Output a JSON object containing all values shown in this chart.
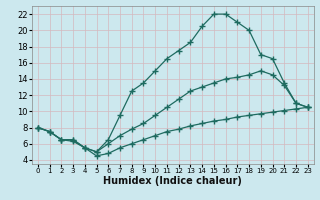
{
  "bg_color": "#cce8ee",
  "grid_color": "#b8d8e0",
  "line_color": "#1e6b60",
  "line_width": 0.9,
  "marker": "+",
  "marker_size": 4,
  "marker_edge_width": 1.0,
  "xlabel": "Humidex (Indice chaleur)",
  "xlabel_fontsize": 7,
  "xlabel_bold": true,
  "xlim": [
    -0.5,
    23.5
  ],
  "ylim": [
    3.5,
    23
  ],
  "xticks": [
    0,
    1,
    2,
    3,
    4,
    5,
    6,
    7,
    8,
    9,
    10,
    11,
    12,
    13,
    14,
    15,
    16,
    17,
    18,
    19,
    20,
    21,
    22,
    23
  ],
  "yticks": [
    4,
    6,
    8,
    10,
    12,
    14,
    16,
    18,
    20,
    22
  ],
  "curve1_x": [
    0,
    1,
    2,
    3,
    4,
    5,
    6,
    7,
    8,
    9,
    10,
    11,
    12,
    13,
    14,
    15,
    16,
    17,
    18,
    19,
    20,
    21,
    22,
    23
  ],
  "curve1_y": [
    8.0,
    7.5,
    6.5,
    6.5,
    5.5,
    5.0,
    6.5,
    9.5,
    12.5,
    13.5,
    15.0,
    16.5,
    17.5,
    18.5,
    20.5,
    22.0,
    22.0,
    21.0,
    20.0,
    17.0,
    16.5,
    13.5,
    11.0,
    10.5
  ],
  "curve2_x": [
    0,
    1,
    2,
    3,
    4,
    5,
    6,
    7,
    8,
    9,
    10,
    11,
    12,
    13,
    14,
    15,
    16,
    17,
    18,
    19,
    20,
    21,
    22,
    23
  ],
  "curve2_y": [
    8.0,
    7.5,
    6.5,
    6.5,
    5.5,
    5.0,
    6.0,
    7.0,
    7.8,
    8.5,
    9.5,
    10.5,
    11.5,
    12.5,
    13.0,
    13.5,
    14.0,
    14.2,
    14.5,
    15.0,
    14.5,
    13.2,
    11.0,
    10.5
  ],
  "curve3_x": [
    0,
    1,
    2,
    3,
    4,
    5,
    6,
    7,
    8,
    9,
    10,
    11,
    12,
    13,
    14,
    15,
    16,
    17,
    18,
    19,
    20,
    21,
    22,
    23
  ],
  "curve3_y": [
    8.0,
    7.5,
    6.5,
    6.3,
    5.5,
    4.5,
    4.8,
    5.5,
    6.0,
    6.5,
    7.0,
    7.5,
    7.8,
    8.2,
    8.5,
    8.8,
    9.0,
    9.3,
    9.5,
    9.7,
    9.9,
    10.1,
    10.3,
    10.5
  ]
}
